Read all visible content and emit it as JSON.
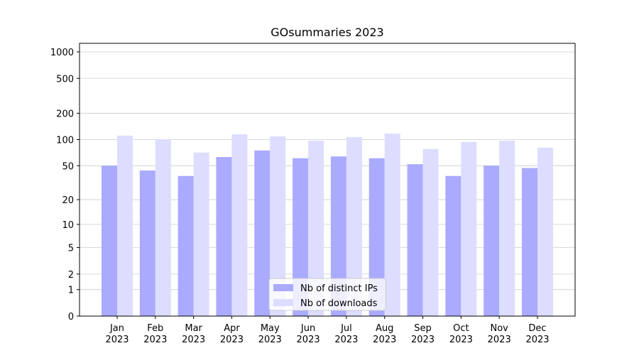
{
  "chart_data": {
    "type": "bar",
    "title": "GOsummaries 2023",
    "categories": [
      "Jan 2023",
      "Feb 2023",
      "Mar 2023",
      "Apr 2023",
      "May 2023",
      "Jun 2023",
      "Jul 2023",
      "Aug 2023",
      "Sep 2023",
      "Oct 2023",
      "Nov 2023",
      "Dec 2023"
    ],
    "series": [
      {
        "name": "Nb of distinct IPs",
        "color": "#aaaaff",
        "values": [
          50,
          44,
          38,
          63,
          75,
          61,
          64,
          61,
          52,
          38,
          50,
          47
        ]
      },
      {
        "name": "Nb of downloads",
        "color": "#ddddff",
        "values": [
          111,
          101,
          71,
          115,
          109,
          97,
          107,
          117,
          78,
          94,
          97,
          81
        ]
      }
    ],
    "yscale": "symlog",
    "ylim": [
      0,
      1250
    ],
    "yticks": [
      0,
      1,
      2,
      5,
      10,
      20,
      50,
      100,
      200,
      500,
      1000
    ],
    "grid": true,
    "legend": "lower center"
  }
}
